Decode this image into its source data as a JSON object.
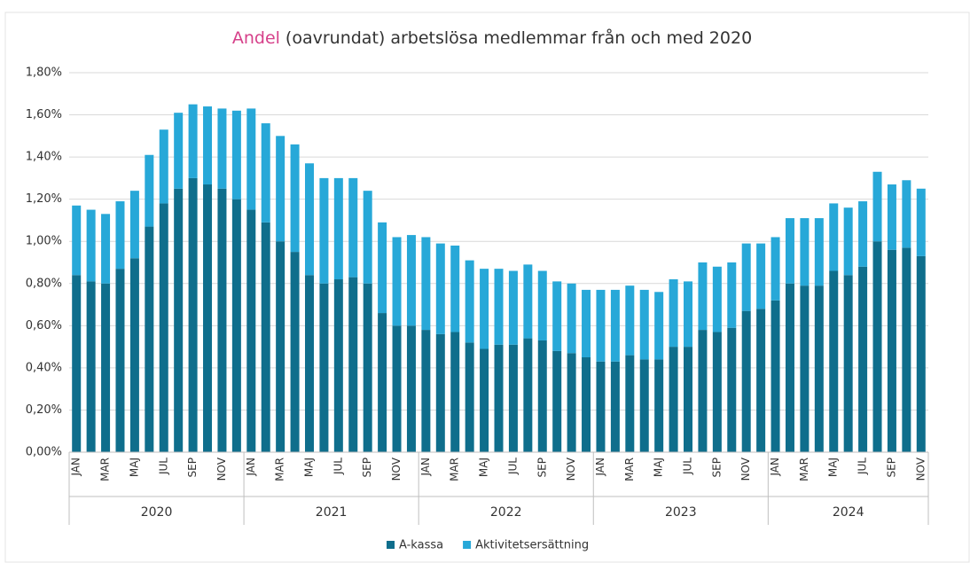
{
  "chart_data": {
    "type": "stacked_bar",
    "title_highlight": "Andel",
    "title": "(oavrundat) arbetslösa medlemmar från och med 2020",
    "categories": [
      "JAN",
      null,
      "MAR",
      null,
      "MAJ",
      null,
      "JUL",
      null,
      "SEP",
      null,
      "NOV",
      null,
      "JAN",
      null,
      "MAR",
      null,
      "MAJ",
      null,
      "JUL",
      null,
      "SEP",
      null,
      "NOV",
      null,
      "JAN",
      null,
      "MAR",
      null,
      "MAJ",
      null,
      "JUL",
      null,
      "SEP",
      null,
      "NOV",
      null,
      "JAN",
      null,
      "MAR",
      null,
      "MAJ",
      null,
      "JUL",
      null,
      "SEP",
      null,
      "NOV",
      null,
      "JAN",
      null,
      "MAR",
      null,
      "MAJ",
      null,
      "JUL",
      null,
      "SEP",
      null,
      "NOV"
    ],
    "groups": [
      "2020",
      "2021",
      "2022",
      "2023",
      "2024"
    ],
    "series": [
      {
        "name": "A-kassa",
        "color": "#0f6e8c",
        "values": [
          0.84,
          0.81,
          0.8,
          0.87,
          0.92,
          1.07,
          1.18,
          1.25,
          1.3,
          1.27,
          1.25,
          1.2,
          1.15,
          1.09,
          1.0,
          0.95,
          0.84,
          0.8,
          0.82,
          0.83,
          0.8,
          0.66,
          0.6,
          0.6,
          0.58,
          0.56,
          0.57,
          0.52,
          0.49,
          0.51,
          0.51,
          0.54,
          0.53,
          0.48,
          0.47,
          0.45,
          0.43,
          0.43,
          0.46,
          0.44,
          0.44,
          0.5,
          0.5,
          0.58,
          0.57,
          0.59,
          0.67,
          0.68,
          0.72,
          0.8,
          0.79,
          0.79,
          0.86,
          0.84,
          0.88,
          1.0,
          0.96,
          0.97,
          0.93
        ]
      },
      {
        "name": "Aktivitetsersättning",
        "color": "#27a8d8",
        "values": [
          0.33,
          0.34,
          0.33,
          0.32,
          0.32,
          0.34,
          0.35,
          0.36,
          0.35,
          0.37,
          0.38,
          0.42,
          0.48,
          0.47,
          0.5,
          0.51,
          0.53,
          0.5,
          0.48,
          0.47,
          0.44,
          0.43,
          0.42,
          0.43,
          0.44,
          0.43,
          0.41,
          0.39,
          0.38,
          0.36,
          0.35,
          0.35,
          0.33,
          0.33,
          0.33,
          0.32,
          0.34,
          0.34,
          0.33,
          0.33,
          0.32,
          0.32,
          0.31,
          0.32,
          0.31,
          0.31,
          0.32,
          0.31,
          0.3,
          0.31,
          0.32,
          0.32,
          0.32,
          0.32,
          0.31,
          0.33,
          0.31,
          0.32,
          0.32
        ]
      }
    ],
    "ylim": [
      0,
      1.8
    ],
    "yticks": [
      {
        "value": 0,
        "label": "0,00%"
      },
      {
        "value": 0.2,
        "label": "0,20%"
      },
      {
        "value": 0.4,
        "label": "0,40%"
      },
      {
        "value": 0.6,
        "label": "0,60%"
      },
      {
        "value": 0.8,
        "label": "0,80%"
      },
      {
        "value": 1.0,
        "label": "1,00%"
      },
      {
        "value": 1.2,
        "label": "1,20%"
      },
      {
        "value": 1.4,
        "label": "1,40%"
      },
      {
        "value": 1.6,
        "label": "1,60%"
      },
      {
        "value": 1.8,
        "label": "1,80%"
      }
    ],
    "grid": true,
    "legend": "bottom"
  }
}
